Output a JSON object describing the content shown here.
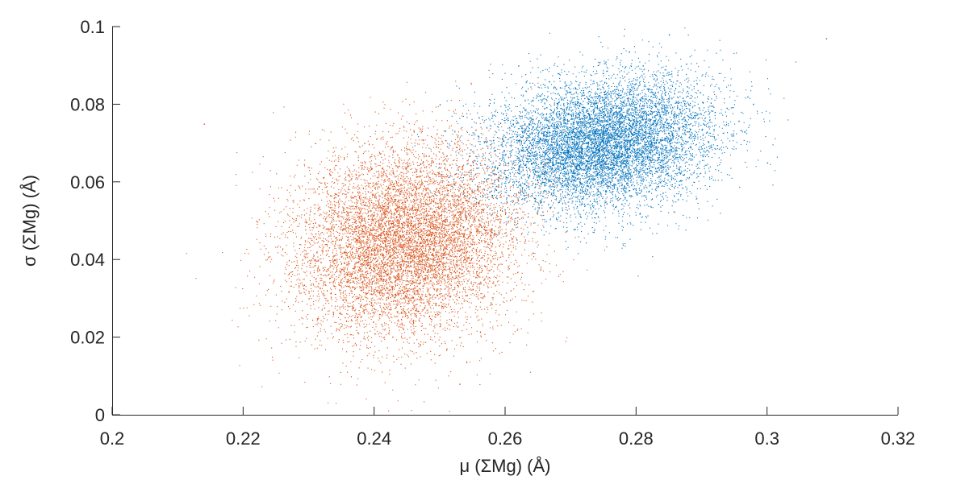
{
  "chart_data": {
    "type": "scatter",
    "title": "",
    "xlabel": "μ (ΣMg) (Å)",
    "ylabel": "σ (ΣMg) (Å)",
    "xlim": [
      0.2,
      0.32
    ],
    "ylim": [
      0,
      0.1
    ],
    "xticks": [
      0.2,
      0.22,
      0.24,
      0.26,
      0.28,
      0.3,
      0.32
    ],
    "xtick_labels": [
      "0.2",
      "0.22",
      "0.24",
      "0.26",
      "0.28",
      "0.3",
      "0.32"
    ],
    "yticks": [
      0,
      0.02,
      0.04,
      0.06,
      0.08,
      0.1
    ],
    "ytick_labels": [
      "0",
      "0.02",
      "0.04",
      "0.06",
      "0.08",
      "0.1"
    ],
    "grid": false,
    "legend": "none",
    "series": [
      {
        "color": "#D95319",
        "distribution": "approximate 2D Gaussian point cloud",
        "center": [
          0.245,
          0.045
        ],
        "spread": [
          0.0085,
          0.0125
        ],
        "correlation": 0.15,
        "points": [
          [
            0.245,
            0.045
          ],
          [
            0.238,
            0.05
          ],
          [
            0.252,
            0.04
          ],
          [
            0.241,
            0.035
          ],
          [
            0.249,
            0.055
          ],
          [
            0.233,
            0.048
          ],
          [
            0.256,
            0.047
          ],
          [
            0.244,
            0.028
          ],
          [
            0.236,
            0.062
          ],
          [
            0.26,
            0.052
          ],
          [
            0.229,
            0.04
          ],
          [
            0.247,
            0.018
          ],
          [
            0.231,
            0.07
          ],
          [
            0.265,
            0.06
          ],
          [
            0.222,
            0.05
          ],
          [
            0.253,
            0.008
          ],
          [
            0.214,
            0.075
          ],
          [
            0.275,
            0.065
          ]
        ]
      },
      {
        "color": "#0072BD",
        "distribution": "approximate 2D Gaussian point cloud",
        "center": [
          0.275,
          0.07
        ],
        "spread": [
          0.0085,
          0.0085
        ],
        "correlation": 0.2,
        "points": [
          [
            0.275,
            0.07
          ],
          [
            0.268,
            0.074
          ],
          [
            0.282,
            0.066
          ],
          [
            0.271,
            0.061
          ],
          [
            0.279,
            0.08
          ],
          [
            0.263,
            0.068
          ],
          [
            0.288,
            0.073
          ],
          [
            0.274,
            0.055
          ],
          [
            0.266,
            0.085
          ],
          [
            0.292,
            0.078
          ],
          [
            0.258,
            0.064
          ],
          [
            0.281,
            0.09
          ],
          [
            0.297,
            0.082
          ],
          [
            0.262,
            0.09
          ],
          [
            0.3,
            0.065
          ],
          [
            0.285,
            0.098
          ],
          [
            0.309,
            0.097
          ],
          [
            0.25,
            0.08
          ]
        ]
      }
    ]
  }
}
